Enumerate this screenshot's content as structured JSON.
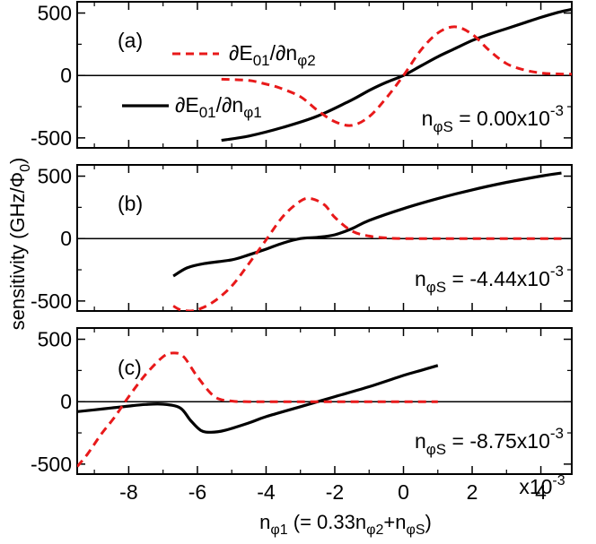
{
  "colors": {
    "series1": "#000000",
    "series2": "#e8191a",
    "zero_line": "#000000",
    "frame": "#000000"
  },
  "chart_data": {
    "type": "line",
    "shared_x": {
      "label_main": "n",
      "label_sub": "φ1",
      "label_rest": " (= 0.33n",
      "label_sub2": "φ2",
      "label_plus": "+n",
      "label_sub3": "φS",
      "label_close": ")",
      "range": [
        -9.5,
        4.9
      ],
      "ticks": [
        -8,
        -6,
        -4,
        -2,
        0,
        2,
        4
      ],
      "tick_labels": [
        "-8",
        "-6",
        "-4",
        "-2",
        "0",
        "2",
        "4"
      ],
      "exponent_label": "x10",
      "exponent_power": "-3"
    },
    "y_title": {
      "prefix": "sensitivity (GHz/Φ",
      "sub": "0",
      "suffix": ")"
    },
    "legend": [
      {
        "series": "dE01/dnphi2",
        "pre": "∂E",
        "sub1": "01",
        "mid": "/∂n",
        "sub2": "φ2",
        "style": "dashed"
      },
      {
        "series": "dE01/dnphi1",
        "pre": "∂E",
        "sub1": "01",
        "mid": "/∂n",
        "sub2": "φ1",
        "style": "solid"
      }
    ],
    "panels": [
      {
        "label": "(a)",
        "annotation": {
          "pre": "n",
          "sub": "φS",
          "eq": " = 0.00x10",
          "sup": "-3"
        },
        "y_range": [
          -580,
          590
        ],
        "y_ticks": [
          500,
          0,
          -500
        ],
        "y_tick_labels": [
          "500",
          "0",
          "-500"
        ],
        "series": [
          {
            "name": "dE01/dnphi1",
            "style": "solid",
            "x": [
              -5.3,
              -4.5,
              -3.5,
              -2.5,
              -1.5,
              -1.0,
              -0.5,
              0.0,
              0.5,
              1.0,
              1.5,
              2.0,
              2.5,
              3.0,
              3.5,
              4.0,
              4.5,
              4.9
            ],
            "y": [
              -520,
              -485,
              -415,
              -325,
              -195,
              -120,
              -55,
              0,
              75,
              150,
              215,
              280,
              330,
              375,
              420,
              465,
              505,
              530
            ]
          },
          {
            "name": "dE01/dnphi2",
            "style": "dashed",
            "x": [
              -5.3,
              -4.5,
              -4.0,
              -3.6,
              -3.0,
              -2.5,
              -2.0,
              -1.5,
              -1.0,
              -0.5,
              0.0,
              0.5,
              1.0,
              1.5,
              2.0,
              2.5,
              3.0,
              3.5,
              4.0,
              4.5,
              4.9
            ],
            "y": [
              -30,
              -40,
              -70,
              -100,
              -170,
              -280,
              -370,
              -400,
              -330,
              -180,
              0,
              200,
              340,
              390,
              330,
              200,
              95,
              45,
              20,
              12,
              10
            ]
          }
        ]
      },
      {
        "label": "(b)",
        "annotation": {
          "pre": "n",
          "sub": "φS",
          "eq": " = -4.44x10",
          "sup": "-3"
        },
        "y_range": [
          -580,
          590
        ],
        "y_ticks": [
          500,
          0,
          -500
        ],
        "y_tick_labels": [
          "500",
          "0",
          "-500"
        ],
        "series": [
          {
            "name": "dE01/dnphi1",
            "style": "solid",
            "x": [
              -6.7,
              -6.3,
              -5.8,
              -5.0,
              -4.5,
              -4.0,
              -3.5,
              -3.0,
              -2.5,
              -2.0,
              -1.5,
              -1.0,
              0.0,
              1.0,
              2.0,
              3.0,
              4.0,
              4.6
            ],
            "y": [
              -300,
              -235,
              -200,
              -170,
              -130,
              -85,
              -35,
              0,
              10,
              30,
              80,
              145,
              240,
              320,
              390,
              450,
              500,
              525
            ]
          },
          {
            "name": "dE01/dnphi2",
            "style": "dashed",
            "x": [
              -6.7,
              -6.5,
              -6.2,
              -5.9,
              -5.5,
              -5.0,
              -4.5,
              -4.0,
              -3.5,
              -3.0,
              -2.7,
              -2.3,
              -2.0,
              -1.5,
              -1.0,
              -0.5,
              0.0,
              1.0,
              2.0,
              3.0,
              4.0,
              4.6
            ],
            "y": [
              -540,
              -570,
              -580,
              -560,
              -500,
              -380,
              -200,
              -10,
              180,
              300,
              320,
              270,
              170,
              60,
              20,
              5,
              0,
              0,
              0,
              0,
              0,
              0
            ]
          }
        ]
      },
      {
        "label": "(c)",
        "annotation": {
          "pre": "n",
          "sub": "φS",
          "eq": " = -8.75x10",
          "sup": "-3"
        },
        "y_range": [
          -580,
          590
        ],
        "y_ticks": [
          500,
          0,
          -500
        ],
        "y_tick_labels": [
          "500",
          "0",
          "-500"
        ],
        "series": [
          {
            "name": "dE01/dnphi1",
            "style": "solid",
            "x": [
              -9.5,
              -9.0,
              -8.5,
              -8.0,
              -7.5,
              -7.0,
              -6.5,
              -6.2,
              -5.9,
              -5.6,
              -5.2,
              -4.5,
              -4.0,
              -3.0,
              -2.0,
              -1.0,
              0.0,
              0.5,
              1.0
            ],
            "y": [
              -80,
              -65,
              -50,
              -35,
              -22,
              -20,
              -50,
              -150,
              -230,
              -245,
              -230,
              -170,
              -120,
              -40,
              40,
              120,
              210,
              250,
              290
            ]
          },
          {
            "name": "dE01/dnphi2",
            "style": "dashed",
            "x": [
              -9.5,
              -9.2,
              -8.8,
              -8.4,
              -8.0,
              -7.5,
              -7.0,
              -6.7,
              -6.4,
              -6.0,
              -5.5,
              -5.0,
              -4.5,
              -4.0,
              -3.0,
              -2.0,
              -1.0,
              0.0,
              1.0
            ],
            "y": [
              -520,
              -420,
              -260,
              -120,
              40,
              220,
              360,
              390,
              360,
              200,
              40,
              5,
              0,
              0,
              0,
              0,
              0,
              0,
              0
            ]
          }
        ]
      }
    ]
  }
}
